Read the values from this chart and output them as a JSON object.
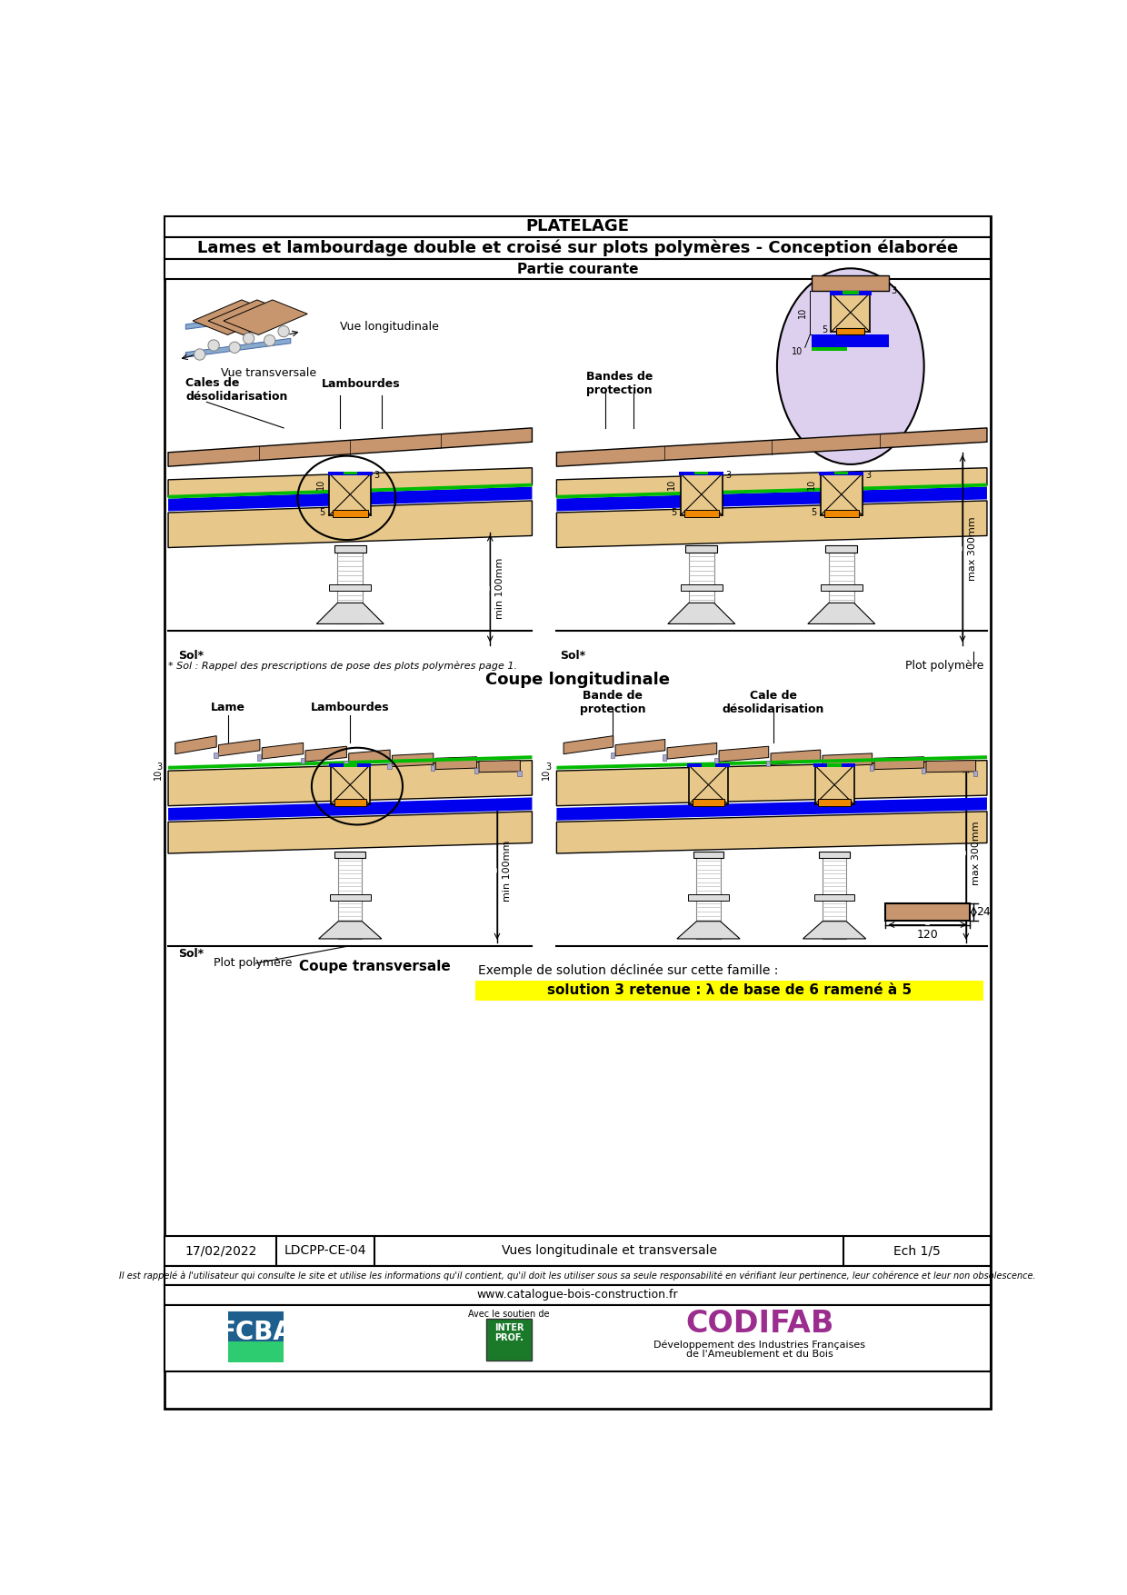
{
  "title1": "PLATELAGE",
  "title2": "Lames et lambourdage double et croisé sur plots polymères - Conception élaborée",
  "title3": "Partie courante",
  "section1_title": "Coupe longitudinale",
  "section2_title": "Coupe transversale",
  "footer_date": "17/02/2022",
  "footer_code": "LDCPP-CE-04",
  "footer_desc": "Vues longitudinale et transversale",
  "footer_scale": "Ech 1/5",
  "footer_url": "www.catalogue-bois-construction.fr",
  "footer_legal": "Il est rappelé à l'utilisateur qui consulte le site et utilise les informations qu'il contient, qu'il doit les utiliser sous sa seule responsabilité en vérifiant leur pertinence, leur cohérence et leur non obsolescence.",
  "sol_note": "* Sol : Rappel des prescriptions de pose des plots polymères page 1.",
  "plot_polymere_label": "Plot polymère",
  "vue_transversale": "Vue transversale",
  "vue_longitudinale": "Vue longitudinale",
  "label_cales": "Cales de\ndésolidarisation",
  "label_lambourdes": "Lambourdes",
  "label_bandes": "Bandes de\nprotection",
  "label_lame": "Lame",
  "label_lambourdes2": "Lambourdes",
  "label_bande2": "Bande de\nprotection",
  "label_cale2": "Cale de\ndésolidarisation",
  "label_sol": "Sol*",
  "label_sol2": "Sol*",
  "label_plot2": "Plot polymère",
  "min_100": "min 100mm",
  "max_300a": "max 300mm",
  "max_300b": "max 300mm",
  "min_100b": "min 100mm",
  "example_text1": "Exemple de solution déclinée sur cette famille :",
  "example_text2": "solution 3 retenue : λ de base de 6 ramené à 5",
  "dim_120": "120",
  "dim_24": "24",
  "background": "#ffffff",
  "border_color": "#000000",
  "wood_color": "#c8966e",
  "wood_lambourde": "#e8c88a",
  "blue_color": "#0000ee",
  "green_color": "#00bb00",
  "orange_color": "#ee8800",
  "red_color": "#cc0000",
  "gray_color": "#aaaaaa",
  "gray_light": "#dddddd",
  "yellow_highlight": "#ffff00",
  "purple_circle": "#ddd0ee",
  "codifab_color": "#9b2d8e"
}
